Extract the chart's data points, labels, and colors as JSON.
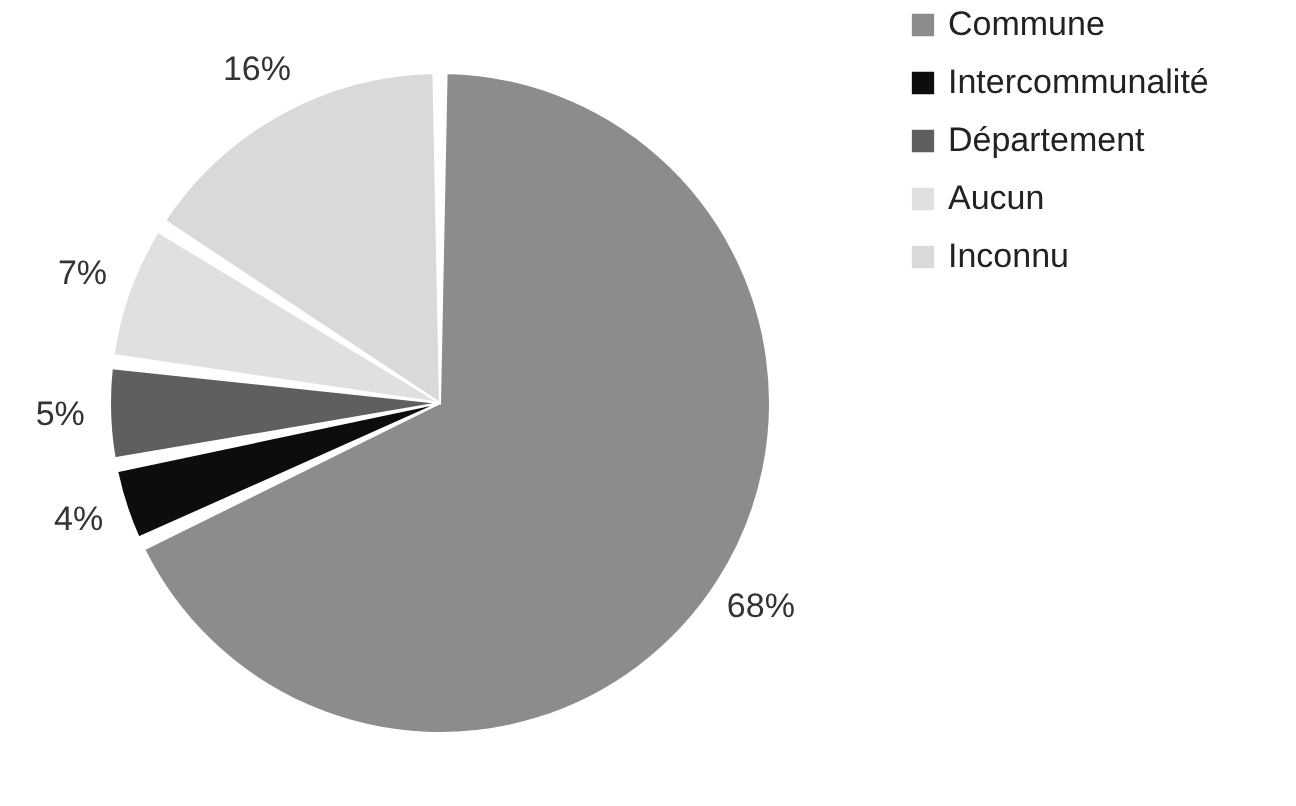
{
  "chart_data": {
    "type": "pie",
    "categories": [
      "Commune",
      "Intercommunalité",
      "Département",
      "Aucun",
      "Inconnu"
    ],
    "values": [
      68,
      4,
      5,
      7,
      16
    ],
    "colors": [
      "#8c8c8c",
      "#0d0d0d",
      "#5f5f5f",
      "#e0e0e0",
      "#d9d9d9"
    ],
    "value_labels": [
      "68%",
      "4%",
      "5%",
      "7%",
      "16%"
    ],
    "legend": "top right"
  }
}
